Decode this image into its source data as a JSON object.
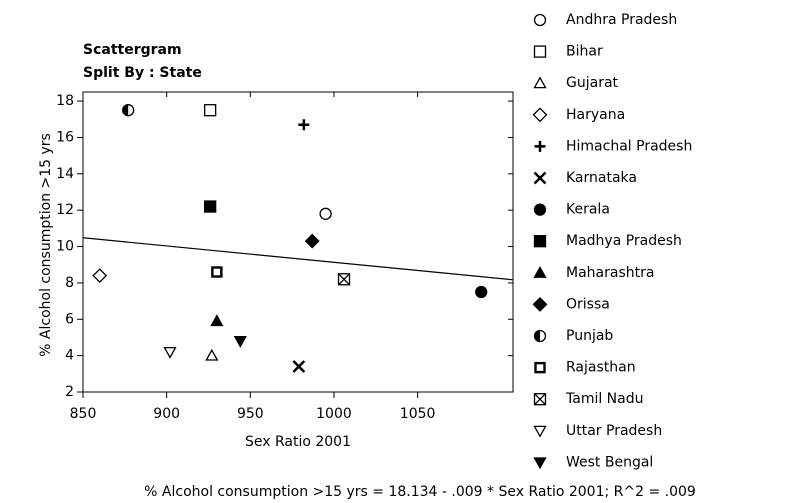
{
  "chart_data": {
    "type": "scatter",
    "title": "Scattergram",
    "subtitle": "Split By : State",
    "x_label": "Sex Ratio 2001",
    "y_label": "% Alcohol consumption >15 yrs",
    "xlim": [
      850,
      1107
    ],
    "ylim": [
      2,
      18.5
    ],
    "xticks": [
      850,
      900,
      950,
      1000,
      1050
    ],
    "yticks": [
      2,
      4,
      6,
      8,
      10,
      12,
      14,
      16,
      18
    ],
    "regression": {
      "intercept": 18.134,
      "slope": -0.009
    },
    "caption": "% Alcohol consumption >15 yrs = 18.134 - .009 * Sex Ratio 2001; R^2 = .009",
    "series": [
      {
        "name": "Andhra Pradesh",
        "marker": "circle-open",
        "color": "#000000",
        "x": [
          995
        ],
        "values": [
          11.8
        ]
      },
      {
        "name": "Bihar",
        "marker": "square-open",
        "color": "#000000",
        "x": [
          926
        ],
        "values": [
          17.5
        ]
      },
      {
        "name": "Gujarat",
        "marker": "triangle-open",
        "color": "#000000",
        "x": [
          927
        ],
        "values": [
          4.0
        ]
      },
      {
        "name": "Haryana",
        "marker": "diamond-open",
        "color": "#000000",
        "x": [
          860
        ],
        "values": [
          8.4
        ]
      },
      {
        "name": "Himachal Pradesh",
        "marker": "plus",
        "color": "#000000",
        "x": [
          982
        ],
        "values": [
          16.7
        ]
      },
      {
        "name": "Karnataka",
        "marker": "cross",
        "color": "#000000",
        "x": [
          979
        ],
        "values": [
          3.4
        ]
      },
      {
        "name": "Kerala",
        "marker": "circle",
        "color": "#000000",
        "x": [
          1088
        ],
        "values": [
          7.5
        ]
      },
      {
        "name": "Madhya Pradesh",
        "marker": "square",
        "color": "#000000",
        "x": [
          926
        ],
        "values": [
          12.2
        ]
      },
      {
        "name": "Maharashtra",
        "marker": "triangle",
        "color": "#000000",
        "x": [
          930
        ],
        "values": [
          5.9
        ]
      },
      {
        "name": "Orissa",
        "marker": "diamond",
        "color": "#000000",
        "x": [
          987
        ],
        "values": [
          10.3
        ]
      },
      {
        "name": "Punjab",
        "marker": "circle-half",
        "color": "#000000",
        "x": [
          877
        ],
        "values": [
          17.5
        ]
      },
      {
        "name": "Rajasthan",
        "marker": "square-thick",
        "color": "#000000",
        "x": [
          930
        ],
        "values": [
          8.6
        ]
      },
      {
        "name": "Tamil Nadu",
        "marker": "square-x",
        "color": "#000000",
        "x": [
          1006
        ],
        "values": [
          8.2
        ]
      },
      {
        "name": "Uttar Pradesh",
        "marker": "triangle-down-open",
        "color": "#000000",
        "x": [
          902
        ],
        "values": [
          4.2
        ]
      },
      {
        "name": "West Bengal",
        "marker": "triangle-down",
        "color": "#000000",
        "x": [
          944
        ],
        "values": [
          4.8
        ]
      }
    ]
  }
}
